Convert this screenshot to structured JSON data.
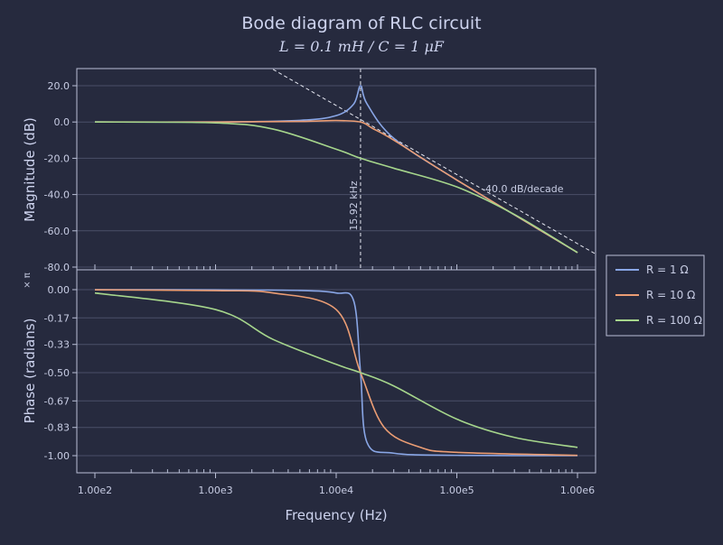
{
  "title": "Bode diagram of RLC circuit",
  "subtitle": "L = 0.1 mH / C = 1 μF",
  "xlabel": "Frequency (Hz)",
  "colors": {
    "background": "#262a3e",
    "grid": "#4a4f68",
    "text": "#cdd3ee",
    "series": [
      "#89a6e6",
      "#eb9d74",
      "#a6d68c"
    ]
  },
  "chart_data": [
    {
      "type": "line",
      "panel": "magnitude",
      "x_scale": "log",
      "xlim": [
        100,
        1000000
      ],
      "ylim": [
        -80,
        30
      ],
      "ylabel": "Magnitude (dB)",
      "y_ticks": [
        "20.0",
        "0.0",
        "-20.0",
        "-40.0",
        "-60.0",
        "-80.0"
      ],
      "grid": true,
      "series": [
        {
          "name": "R = 1 Ω",
          "x": [
            100,
            1000,
            5000,
            10000,
            14000,
            15915,
            18000,
            30000,
            100000,
            1000000
          ],
          "y": [
            0.0,
            0.0,
            0.9,
            3.5,
            10.0,
            20.0,
            10.0,
            -9.0,
            -32.0,
            -72.0
          ]
        },
        {
          "name": "R = 10 Ω",
          "x": [
            100,
            1000,
            5000,
            10000,
            15915,
            20000,
            30000,
            100000,
            1000000
          ],
          "y": [
            0.0,
            0.0,
            0.3,
            0.8,
            0.0,
            -3.5,
            -10.0,
            -32.0,
            -72.0
          ]
        },
        {
          "name": "R = 100 Ω",
          "x": [
            100,
            1000,
            3000,
            10000,
            15915,
            30000,
            100000,
            300000,
            1000000
          ],
          "y": [
            0.0,
            -0.5,
            -3.9,
            -15.0,
            -20.0,
            -25.5,
            -35.8,
            -51.0,
            -72.0
          ]
        }
      ],
      "annotations": {
        "resonance_label": "15.92 kHz",
        "resonance_frequency": 15915,
        "asymptote_label": "-40.0 dB/decade"
      }
    },
    {
      "type": "line",
      "panel": "phase",
      "x_scale": "log",
      "xlim": [
        100,
        1000000
      ],
      "ylim": [
        -1.05,
        0.05
      ],
      "ylabel": "Phase (radians)",
      "y_unit_label": "× π",
      "y_ticks": [
        "0.00",
        "-0.17",
        "-0.33",
        "-0.50",
        "-0.67",
        "-0.83",
        "-1.00"
      ],
      "x_ticks": [
        "1.00e2",
        "1.00e3",
        "1.00e4",
        "1.00e5",
        "1.00e6"
      ],
      "grid": true,
      "series": [
        {
          "name": "R = 1 Ω",
          "x": [
            100,
            1000,
            5000,
            10000,
            14000,
            15915,
            18000,
            30000,
            100000,
            1000000
          ],
          "y": [
            0.0,
            -0.001,
            -0.005,
            -0.02,
            -0.07,
            -0.5,
            -0.92,
            -0.985,
            -0.998,
            -1.0
          ]
        },
        {
          "name": "R = 10 Ω",
          "x": [
            100,
            1000,
            3000,
            10000,
            15915,
            25000,
            50000,
            100000,
            1000000
          ],
          "y": [
            -0.001,
            -0.006,
            -0.02,
            -0.12,
            -0.5,
            -0.83,
            -0.95,
            -0.98,
            -0.998
          ]
        },
        {
          "name": "R = 100 Ω",
          "x": [
            100,
            1000,
            3000,
            10000,
            15915,
            30000,
            100000,
            300000,
            1000000
          ],
          "y": [
            -0.02,
            -0.12,
            -0.3,
            -0.45,
            -0.5,
            -0.58,
            -0.78,
            -0.89,
            -0.95
          ]
        }
      ]
    }
  ],
  "legend": {
    "placement": "right",
    "items": [
      "R = 1 Ω",
      "R = 10 Ω",
      "R = 100 Ω"
    ]
  }
}
